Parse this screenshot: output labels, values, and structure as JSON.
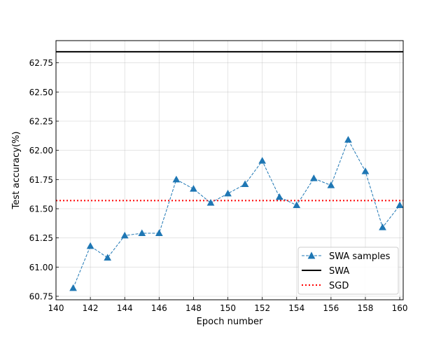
{
  "chart_data": {
    "type": "line",
    "title": "",
    "xlabel": "Epoch number",
    "ylabel": "Test accuracy(%)",
    "xlim": [
      140,
      160.2
    ],
    "ylim": [
      60.72,
      62.94
    ],
    "grid": true,
    "xticks": [
      140,
      142,
      144,
      146,
      148,
      150,
      152,
      154,
      156,
      158,
      160
    ],
    "yticks": [
      60.75,
      61.0,
      61.25,
      61.5,
      61.75,
      62.0,
      62.25,
      62.5,
      62.75
    ],
    "ytick_labels": [
      "60.75",
      "61.00",
      "61.25",
      "61.50",
      "61.75",
      "62.00",
      "62.25",
      "62.50",
      "62.75"
    ],
    "legend_position": "lower right",
    "series": [
      {
        "name": "SWA samples",
        "style": "dashed-triangle",
        "color": "#1f77b4",
        "x": [
          141,
          142,
          143,
          144,
          145,
          146,
          147,
          148,
          149,
          150,
          151,
          152,
          153,
          154,
          155,
          156,
          157,
          158,
          159,
          160
        ],
        "y": [
          60.82,
          61.18,
          61.08,
          61.27,
          61.29,
          61.29,
          61.75,
          61.67,
          61.55,
          61.63,
          61.71,
          61.91,
          61.6,
          61.53,
          61.76,
          61.7,
          62.09,
          61.82,
          61.34,
          61.53
        ]
      },
      {
        "name": "SWA",
        "style": "solid-horizontal",
        "color": "#000000",
        "y": 62.845
      },
      {
        "name": "SGD",
        "style": "dotted-horizontal",
        "color": "#ff0000",
        "y": 61.57
      }
    ]
  }
}
